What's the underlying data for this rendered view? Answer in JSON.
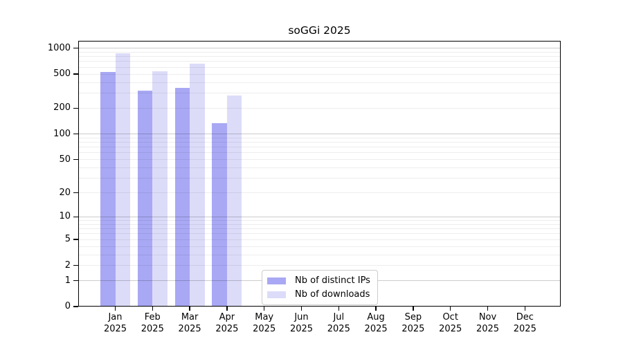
{
  "chart_data": {
    "type": "bar",
    "title": "soGGi 2025",
    "categories": [
      "Jan",
      "Feb",
      "Mar",
      "Apr",
      "May",
      "Jun",
      "Jul",
      "Aug",
      "Sep",
      "Oct",
      "Nov",
      "Dec"
    ],
    "year": "2025",
    "series": [
      {
        "name": "Nb of distinct IPs",
        "color": "#a8a8f4",
        "values": [
          530,
          320,
          345,
          133,
          0,
          0,
          0,
          0,
          0,
          0,
          0,
          0
        ]
      },
      {
        "name": "Nb of downloads",
        "color": "#dcdcf9",
        "values": [
          870,
          540,
          660,
          280,
          0,
          0,
          0,
          0,
          0,
          0,
          0,
          0
        ]
      }
    ],
    "yscale": "log10(value+1)",
    "ylim": [
      0,
      1220
    ],
    "yticks": [
      0,
      1,
      2,
      5,
      10,
      20,
      50,
      100,
      200,
      500,
      1000
    ],
    "major_gridlines": [
      1,
      10,
      100,
      1000
    ],
    "minor_gridlines": [
      2,
      3,
      4,
      5,
      6,
      7,
      8,
      9,
      20,
      30,
      40,
      50,
      60,
      70,
      80,
      90,
      200,
      300,
      400,
      500,
      600,
      700,
      800,
      900
    ],
    "grid": true,
    "legend_position": "lower center",
    "background": "#ffffff"
  }
}
